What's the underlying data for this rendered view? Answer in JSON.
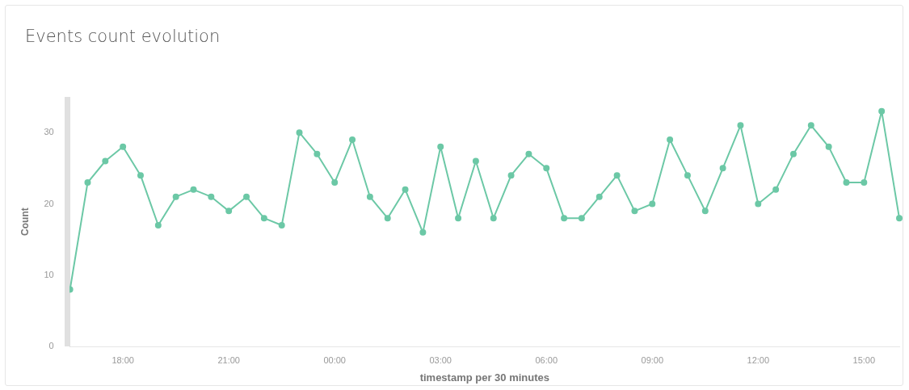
{
  "chart_data": {
    "type": "line",
    "title": "Events count evolution",
    "xlabel": "timestamp per 30 minutes",
    "ylabel": "Count",
    "categories": [
      null,
      null,
      null,
      "18:00",
      null,
      null,
      null,
      null,
      null,
      "21:00",
      null,
      null,
      null,
      null,
      null,
      "00:00",
      null,
      null,
      null,
      null,
      null,
      "03:00",
      null,
      null,
      null,
      null,
      null,
      "06:00",
      null,
      null,
      null,
      null,
      null,
      "09:00",
      null,
      null,
      null,
      null,
      null,
      "12:00",
      null,
      null,
      null,
      null,
      null,
      "15:00",
      null,
      null
    ],
    "series": [
      {
        "color": "#6cc8a6",
        "values": [
          8,
          23,
          26,
          28,
          24,
          17,
          21,
          22,
          21,
          19,
          21,
          18,
          17,
          30,
          27,
          23,
          29,
          21,
          18,
          22,
          16,
          28,
          18,
          26,
          18,
          24,
          27,
          25,
          18,
          18,
          21,
          24,
          19,
          20,
          29,
          24,
          19,
          25,
          31,
          20,
          22,
          27,
          31,
          28,
          23,
          23,
          33,
          18
        ]
      }
    ],
    "ylim": [
      0,
      35
    ],
    "yticks": [
      0,
      10,
      20,
      30
    ],
    "marker": "circle",
    "line_style": "solid",
    "grid": false,
    "legend": false
  }
}
